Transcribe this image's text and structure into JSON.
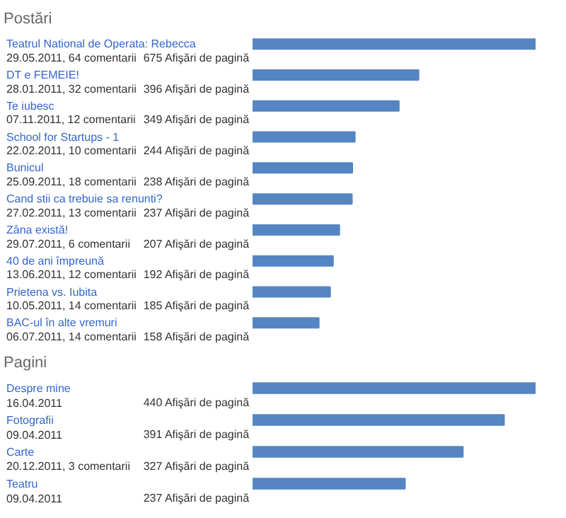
{
  "chart_data": [
    {
      "type": "bar",
      "orientation": "horizontal",
      "title": "Postări",
      "color": "#5585c3",
      "categories": [
        "Teatrul National de Operata: Rebecca",
        "DT e FEMEIE!",
        "Te iubesc",
        "School for Startups - 1",
        "Bunicul",
        "Cand stii ca trebuie sa renunti?",
        "Zâna există!",
        "40 de ani împreună",
        "Prietena vs. Iubita",
        "BAC-ul în alte vremuri"
      ],
      "values": [
        675,
        396,
        349,
        244,
        238,
        237,
        207,
        192,
        185,
        158
      ],
      "value_labels": [
        "675 Afişări de pagină",
        "396 Afişări de pagină",
        "349 Afişări de pagină",
        "244 Afişări de pagină",
        "238 Afişări de pagină",
        "237 Afişări de pagină",
        "207 Afişări de pagină",
        "192 Afişări de pagină",
        "185 Afişări de pagină",
        "158 Afişări de pagină"
      ],
      "annotations": [
        "29.05.2011, 64 comentarii",
        "28.01.2011, 32 comentarii",
        "07.11.2011, 12 comentarii",
        "22.02.2011, 10 comentarii",
        "25.09.2011, 18 comentarii",
        "27.02.2011, 13 comentarii",
        "29.07.2011, 6 comentarii",
        "13.06.2011, 12 comentarii",
        "10.05.2011, 14 comentarii",
        "06.07.2011, 14 comentarii"
      ],
      "xlim": [
        0,
        675
      ]
    },
    {
      "type": "bar",
      "orientation": "horizontal",
      "title": "Pagini",
      "color": "#5585c3",
      "categories": [
        "Despre mine",
        "Fotografii",
        "Carte",
        "Teatru"
      ],
      "values": [
        440,
        391,
        327,
        237
      ],
      "value_labels": [
        "440 Afişări de pagină",
        "391 Afişări de pagină",
        "327 Afişări de pagină",
        "237 Afişări de pagină"
      ],
      "annotations": [
        "16.04.2011",
        "09.04.2011",
        "20.12.2011, 3 comentarii",
        "09.04.2011"
      ],
      "xlim": [
        0,
        440
      ]
    }
  ]
}
